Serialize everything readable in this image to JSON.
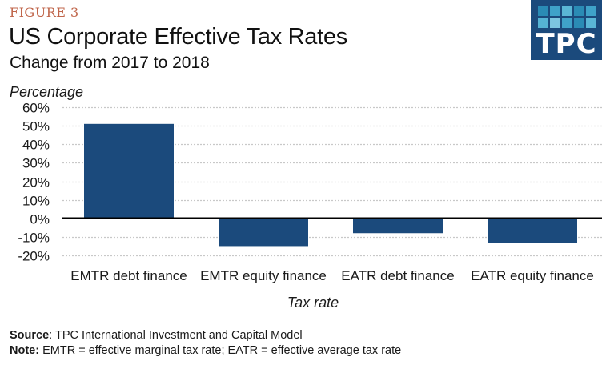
{
  "header": {
    "figure_label": "FIGURE 3",
    "title": "US Corporate Effective Tax Rates",
    "subtitle": "Change from 2017 to 2018",
    "logo_text": "TPC",
    "logo_colors": {
      "background": "#1b4a7c",
      "tiles": [
        "#2a8bb5",
        "#3fa2c9",
        "#5ab6d6",
        "#2a8bb5",
        "#3fa2c9",
        "#55b3d4",
        "#7cc6e0",
        "#3fa2c9",
        "#2a8bb5",
        "#5ab6d6"
      ]
    }
  },
  "footer": {
    "source_label": "Source",
    "source_text": ": TPC International Investment and Capital Model",
    "note_label": "Note:",
    "note_text": " EMTR = effective marginal tax rate; EATR = effective average tax rate"
  },
  "chart_data": {
    "type": "bar",
    "title": "US Corporate Effective Tax Rates",
    "subtitle": "Change from 2017 to 2018",
    "xlabel": "Tax rate",
    "ylabel": "Percentage",
    "categories": [
      "EMTR debt finance",
      "EMTR equity finance",
      "EATR debt finance",
      "EATR equity finance"
    ],
    "values": [
      51,
      -15,
      -8,
      -13.5
    ],
    "unit": "%",
    "ylim": [
      -20,
      60
    ],
    "yticks": [
      60,
      50,
      40,
      30,
      20,
      10,
      0,
      -10,
      -20
    ],
    "ytick_labels": [
      "60%",
      "50%",
      "40%",
      "30%",
      "20%",
      "10%",
      "0%",
      "-10%",
      "-20%"
    ],
    "grid": true,
    "grid_style": "dotted",
    "legend": "none",
    "bar_color": "#1b4a7c"
  }
}
